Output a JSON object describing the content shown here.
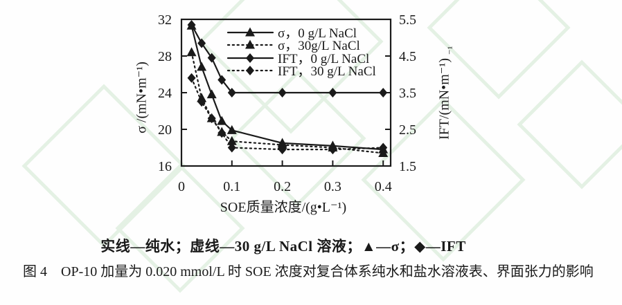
{
  "figure": {
    "legend_note": "实线—纯水；虚线—30 g/L NaCl 溶液；▲—σ；◆—IFT",
    "caption": "图 4　OP-10 加量为 0.020 mmol/L 时 SOE 浓度对复合体系纯水和盐水溶液表、界面张力的影响"
  },
  "chart_data": {
    "type": "line",
    "title": "",
    "xlabel": "SOE质量浓度/(g•L⁻¹)",
    "x": [
      0.02,
      0.04,
      0.06,
      0.08,
      0.1,
      0.2,
      0.3,
      0.4
    ],
    "xlim": [
      0,
      0.415
    ],
    "x_tick_values": [
      0,
      0.1,
      0.2,
      0.3,
      0.4
    ],
    "x_tick_labels": [
      "0",
      "0.1",
      "0.2",
      "0.3",
      "0.4"
    ],
    "left_axis": {
      "label": "σ /(mN•m⁻¹)",
      "min": 16,
      "max": 32,
      "tick_values": [
        32,
        28,
        24,
        20,
        16
      ],
      "tick_labels": [
        "32",
        "28",
        "24",
        "20",
        "16"
      ]
    },
    "right_axis": {
      "label": "IFT/(mN•m⁻¹)",
      "superscript_artifact": "⁻¹",
      "min": 1.5,
      "max": 5.5,
      "tick_values": [
        5.5,
        4.5,
        3.5,
        2.5,
        1.5
      ],
      "tick_labels": [
        "5.5",
        "4.5",
        "3.5",
        "2.5",
        "1.5"
      ]
    },
    "grid": false,
    "legend_position": "inside-top-right",
    "series": [
      {
        "name": "σ，0 g/L NaCl",
        "axis": "left",
        "line": "solid",
        "marker": "triangle",
        "values": [
          31.3,
          26.8,
          23.8,
          20.9,
          19.9,
          18.5,
          18.2,
          17.8
        ]
      },
      {
        "name": "σ，30g/L NaCl",
        "axis": "left",
        "line": "dotted",
        "marker": "triangle",
        "values": [
          28.4,
          23.4,
          21.2,
          19.7,
          18.7,
          18.3,
          18.0,
          17.4
        ]
      },
      {
        "name": "IFT，0 g/L NaCl",
        "axis": "right",
        "line": "solid",
        "marker": "diamond",
        "values": [
          5.35,
          4.85,
          4.45,
          3.85,
          3.5,
          3.5,
          3.5,
          3.5
        ]
      },
      {
        "name": "IFT，30 g/L NaCl",
        "axis": "right",
        "line": "dotted",
        "marker": "diamond",
        "values": [
          3.9,
          3.25,
          2.8,
          2.4,
          2.0,
          1.95,
          1.95,
          2.0
        ]
      }
    ],
    "colors": {
      "ink": "#1a1a1a",
      "watermark": "#e4f1e4",
      "background": "#fefefe"
    }
  }
}
